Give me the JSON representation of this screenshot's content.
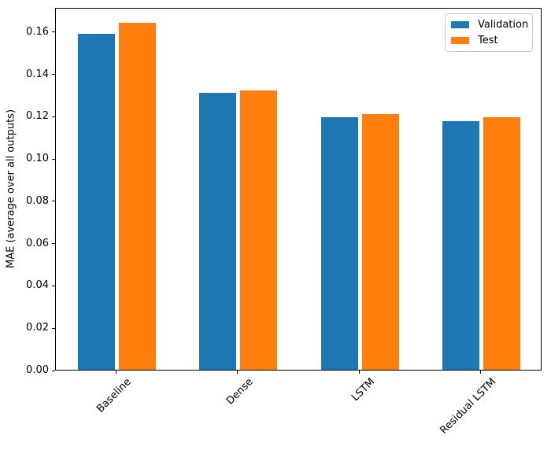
{
  "chart_data": {
    "type": "bar",
    "title": "",
    "xlabel": "",
    "ylabel": "MAE (average over all outputs)",
    "categories": [
      "Baseline",
      "Dense",
      "LSTM",
      "Residual LSTM"
    ],
    "series": [
      {
        "name": "Validation",
        "color": "#1f77b4",
        "values": [
          0.159,
          0.131,
          0.1195,
          0.1175
        ]
      },
      {
        "name": "Test",
        "color": "#ff7f0e",
        "values": [
          0.164,
          0.132,
          0.121,
          0.1195
        ]
      }
    ],
    "ylim": [
      0,
      0.1715
    ],
    "yticks": [
      "0.00",
      "0.02",
      "0.04",
      "0.06",
      "0.08",
      "0.10",
      "0.12",
      "0.14",
      "0.16"
    ],
    "xtick_rotation": 45,
    "grid": false,
    "legend": {
      "position": "upper right",
      "entries": [
        "Validation",
        "Test"
      ]
    }
  }
}
